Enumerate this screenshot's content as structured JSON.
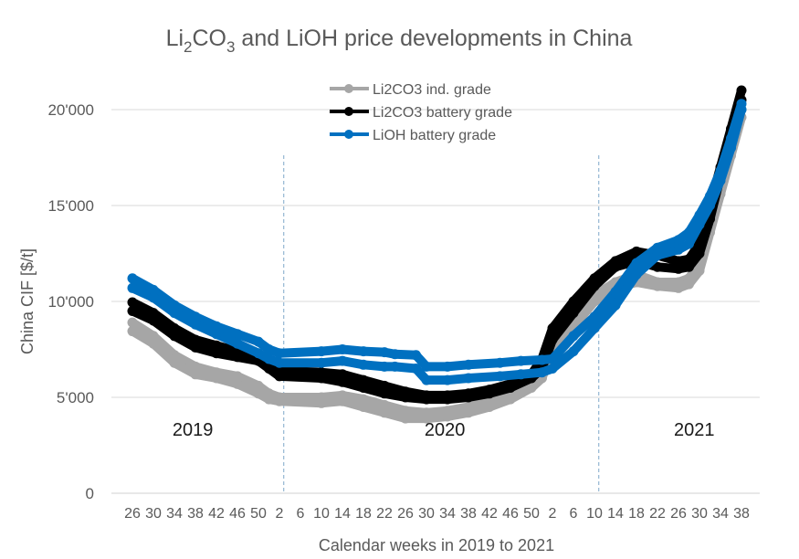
{
  "chart_data": {
    "type": "line",
    "title": {
      "prefix": "Li",
      "sub1": "2",
      "mid": "CO",
      "sub2": "3",
      "suffix": " and LiOH price developments in China"
    },
    "xlabel": "Calendar weeks in 2019 to 2021",
    "ylabel": "China CIF [$/t]",
    "ylim": [
      0,
      20000
    ],
    "yticks": [
      0,
      5000,
      10000,
      15000,
      20000
    ],
    "ytick_labels": [
      "0",
      "5'000",
      "10'000",
      "15'000",
      "20'000"
    ],
    "x_index_range": [
      0,
      116
    ],
    "xticks": [
      {
        "i": 0,
        "label": "26"
      },
      {
        "i": 4,
        "label": "30"
      },
      {
        "i": 8,
        "label": "34"
      },
      {
        "i": 12,
        "label": "38"
      },
      {
        "i": 16,
        "label": "42"
      },
      {
        "i": 20,
        "label": "46"
      },
      {
        "i": 24,
        "label": "50"
      },
      {
        "i": 28,
        "label": "2"
      },
      {
        "i": 32,
        "label": "6"
      },
      {
        "i": 36,
        "label": "10"
      },
      {
        "i": 40,
        "label": "14"
      },
      {
        "i": 44,
        "label": "18"
      },
      {
        "i": 48,
        "label": "22"
      },
      {
        "i": 52,
        "label": "26"
      },
      {
        "i": 56,
        "label": "30"
      },
      {
        "i": 60,
        "label": "34"
      },
      {
        "i": 64,
        "label": "38"
      },
      {
        "i": 68,
        "label": "42"
      },
      {
        "i": 72,
        "label": "46"
      },
      {
        "i": 76,
        "label": "50"
      },
      {
        "i": 80,
        "label": "2"
      },
      {
        "i": 84,
        "label": "6"
      },
      {
        "i": 88,
        "label": "10"
      },
      {
        "i": 92,
        "label": "14"
      },
      {
        "i": 96,
        "label": "18"
      },
      {
        "i": 100,
        "label": "22"
      },
      {
        "i": 104,
        "label": "26"
      },
      {
        "i": 108,
        "label": "30"
      },
      {
        "i": 112,
        "label": "34"
      },
      {
        "i": 116,
        "label": "38"
      }
    ],
    "year_dividers": [
      29,
      89
    ],
    "year_labels": [
      {
        "label": "2019",
        "i": 11.5
      },
      {
        "label": "2020",
        "i": 59.5
      },
      {
        "label": "2021",
        "i": 107
      }
    ],
    "grid": true,
    "legend": {
      "position": "top-center",
      "entries": [
        "Li2CO3 ind. grade",
        "Li2CO3 battery grade",
        "LiOH battery grade"
      ]
    },
    "series": [
      {
        "name": "Li2CO3 ind. grade",
        "color": "#A6A6A6",
        "lines": [
          {
            "band": "high",
            "x": [
              0,
              4,
              8,
              12,
              16,
              20,
              24,
              26,
              28,
              36,
              40,
              44,
              48,
              52,
              56,
              60,
              64,
              68,
              72,
              76,
              78,
              80,
              84,
              88,
              92,
              96,
              100,
              104,
              106,
              108,
              110,
              112,
              114,
              116
            ],
            "y": [
              8900,
              8200,
              7200,
              6600,
              6300,
              6100,
              5600,
              5200,
              5000,
              5000,
              5100,
              4900,
              4600,
              4300,
              4200,
              4300,
              4500,
              4800,
              5200,
              5800,
              6300,
              7800,
              9000,
              10300,
              11000,
              11400,
              11000,
              11000,
              11200,
              12000,
              14000,
              16000,
              18000,
              20000
            ]
          },
          {
            "band": "low",
            "x": [
              0,
              4,
              8,
              12,
              16,
              20,
              24,
              26,
              28,
              36,
              40,
              44,
              48,
              52,
              56,
              60,
              64,
              68,
              72,
              76,
              78,
              80,
              84,
              88,
              92,
              96,
              100,
              104,
              106,
              108,
              110,
              112,
              114,
              116
            ],
            "y": [
              8450,
              7800,
              6800,
              6200,
              6000,
              5700,
              5200,
              4900,
              4800,
              4700,
              4800,
              4500,
              4200,
              3900,
              3900,
              4000,
              4200,
              4500,
              4900,
              5500,
              6000,
              7500,
              8700,
              10000,
              10700,
              11000,
              10800,
              10700,
              10900,
              11600,
              13600,
              15600,
              17600,
              19600
            ]
          }
        ]
      },
      {
        "name": "Li2CO3 battery grade",
        "color": "#000000",
        "lines": [
          {
            "band": "high",
            "x": [
              0,
              4,
              8,
              12,
              16,
              20,
              24,
              26,
              28,
              36,
              40,
              44,
              48,
              52,
              56,
              60,
              64,
              68,
              72,
              76,
              78,
              80,
              84,
              88,
              92,
              96,
              100,
              104,
              106,
              108,
              110,
              112,
              114,
              116
            ],
            "y": [
              9950,
              9400,
              8600,
              8000,
              7700,
              7400,
              7200,
              6700,
              6400,
              6300,
              6200,
              5900,
              5600,
              5300,
              5100,
              5100,
              5200,
              5400,
              5700,
              6200,
              7000,
              8600,
              10000,
              11200,
              12100,
              12600,
              12400,
              12100,
              12200,
              13000,
              15000,
              17000,
              19000,
              21000
            ]
          },
          {
            "band": "low",
            "x": [
              0,
              4,
              8,
              12,
              16,
              20,
              24,
              26,
              28,
              36,
              40,
              44,
              48,
              52,
              56,
              60,
              64,
              68,
              72,
              76,
              78,
              80,
              84,
              88,
              92,
              96,
              100,
              104,
              106,
              108,
              110,
              112,
              114,
              116
            ],
            "y": [
              9500,
              9000,
              8200,
              7600,
              7300,
              7100,
              6900,
              6500,
              6100,
              6000,
              5800,
              5500,
              5200,
              5000,
              4900,
              4900,
              5000,
              5200,
              5500,
              6000,
              6500,
              8000,
              9400,
              10800,
              11800,
              12100,
              11800,
              11700,
              11800,
              12500,
              14300,
              16500,
              18500,
              20500
            ]
          }
        ]
      },
      {
        "name": "LiOH battery grade",
        "color": "#0070C0",
        "lines": [
          {
            "band": "high",
            "x": [
              0,
              4,
              8,
              12,
              16,
              20,
              24,
              26,
              28,
              36,
              40,
              44,
              48,
              50,
              54,
              56,
              60,
              64,
              70,
              74,
              78,
              80,
              84,
              88,
              92,
              96,
              100,
              104,
              106,
              108,
              110,
              112,
              114,
              116
            ],
            "y": [
              11200,
              10600,
              9800,
              9200,
              8700,
              8300,
              7900,
              7500,
              7300,
              7400,
              7500,
              7400,
              7350,
              7250,
              7200,
              6600,
              6600,
              6700,
              6800,
              6900,
              6950,
              7000,
              8200,
              9200,
              10500,
              12000,
              12800,
              13200,
              13600,
              14500,
              15500,
              16800,
              18500,
              20300
            ]
          },
          {
            "band": "low",
            "x": [
              0,
              4,
              8,
              12,
              16,
              20,
              24,
              26,
              28,
              36,
              40,
              44,
              48,
              50,
              54,
              56,
              60,
              64,
              70,
              74,
              78,
              80,
              84,
              88,
              92,
              96,
              100,
              104,
              106,
              108,
              110,
              112,
              114,
              116
            ],
            "y": [
              10700,
              10200,
              9400,
              8800,
              8300,
              7800,
              7300,
              7000,
              6800,
              6800,
              6900,
              6700,
              6600,
              6600,
              6500,
              5900,
              5900,
              6000,
              6100,
              6200,
              6300,
              6500,
              7400,
              8600,
              9800,
              11400,
              12400,
              12700,
              13000,
              14000,
              15000,
              16300,
              18000,
              20000
            ]
          }
        ]
      }
    ]
  }
}
